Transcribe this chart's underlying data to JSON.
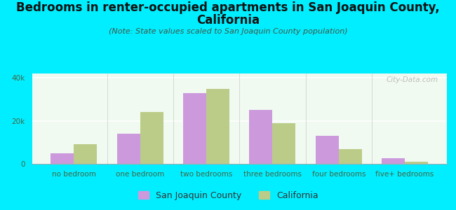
{
  "title_line1": "Bedrooms in renter-occupied apartments in San Joaquin County,",
  "title_line2": "California",
  "subtitle": "(Note: State values scaled to San Joaquin County population)",
  "categories": [
    "no bedroom",
    "one bedroom",
    "two bedrooms",
    "three bedrooms",
    "four bedrooms",
    "five+ bedrooms"
  ],
  "sjc_values": [
    5000,
    14000,
    33000,
    25000,
    13000,
    2500
  ],
  "ca_values": [
    9000,
    24000,
    35000,
    19000,
    7000,
    1000
  ],
  "sjc_color": "#cc99dd",
  "ca_color": "#bbcc88",
  "background_color": "#00eeff",
  "plot_bg": "#f0faf0",
  "ylim": [
    0,
    42000
  ],
  "ytick_labels": [
    "0",
    "20k",
    "40k"
  ],
  "ytick_vals": [
    0,
    20000,
    40000
  ],
  "bar_width": 0.35,
  "legend_sjc": "San Joaquin County",
  "legend_ca": "California",
  "watermark": "City-Data.com",
  "title_fontsize": 12,
  "subtitle_fontsize": 8,
  "tick_fontsize": 7.5,
  "legend_fontsize": 9
}
